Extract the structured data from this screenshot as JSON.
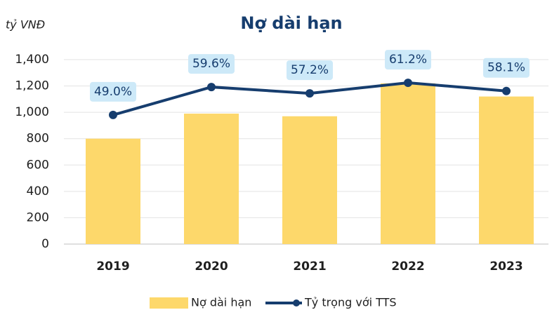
{
  "chart_data": {
    "type": "bar+line",
    "title": "Nợ dài hạn",
    "y_label": "tỷ VNĐ",
    "categories": [
      "2019",
      "2020",
      "2021",
      "2022",
      "2023"
    ],
    "series": [
      {
        "name": "Nợ dài hạn",
        "color": "#fdd86b",
        "type": "bar",
        "values": [
          800,
          990,
          970,
          1220,
          1120
        ]
      },
      {
        "name": "Tỷ trọng với TTS",
        "color": "#163d6e",
        "type": "line",
        "axis": "y2",
        "values": [
          49.0,
          59.6,
          57.2,
          61.2,
          58.1
        ],
        "value_labels": [
          "49.0%",
          "59.6%",
          "57.2%",
          "61.2%",
          "58.1%"
        ]
      }
    ],
    "ylim": [
      0,
      1400
    ],
    "yticks": [
      0,
      200,
      400,
      600,
      800,
      {
        "value": 1000,
        "label": "1,000"
      },
      {
        "value": 1200,
        "label": "1,200"
      },
      {
        "value": 1400,
        "label": "1,400"
      }
    ],
    "y2lim": [
      0,
      70
    ],
    "grid": true,
    "legend": "bottom"
  }
}
